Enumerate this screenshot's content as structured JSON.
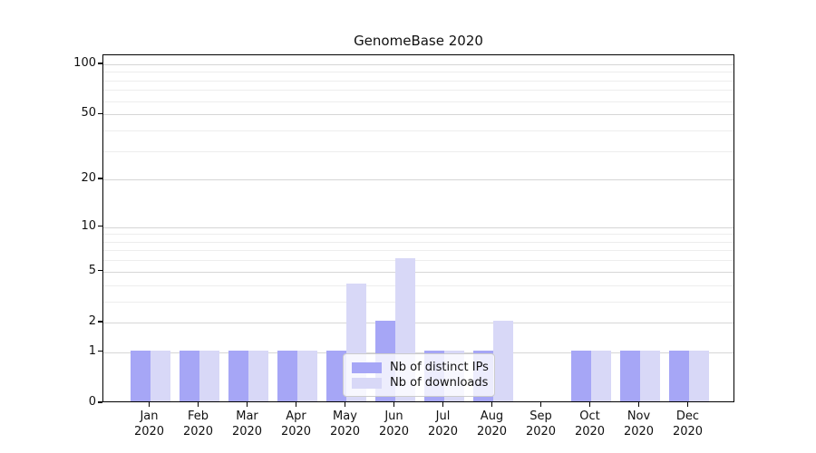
{
  "title": "GenomeBase 2020",
  "chart_data": {
    "type": "bar",
    "title": "GenomeBase 2020",
    "categories": [
      "Jan 2020",
      "Feb 2020",
      "Mar 2020",
      "Apr 2020",
      "May 2020",
      "Jun 2020",
      "Jul 2020",
      "Aug 2020",
      "Sep 2020",
      "Oct 2020",
      "Nov 2020",
      "Dec 2020"
    ],
    "series": [
      {
        "name": "Nb of distinct IPs",
        "color": "#a6a6f6",
        "values": [
          1,
          1,
          1,
          1,
          1,
          2,
          1,
          1,
          0,
          1,
          1,
          1
        ]
      },
      {
        "name": "Nb of downloads",
        "color": "#d8d8f7",
        "values": [
          1,
          1,
          1,
          1,
          4,
          6,
          1,
          2,
          0,
          1,
          1,
          1
        ]
      }
    ],
    "xlabel": "",
    "ylabel": "",
    "yscale": "log1p",
    "ymax": 113,
    "yticks": [
      0,
      1,
      2,
      5,
      10,
      20,
      50,
      100
    ],
    "grid_major": [
      1,
      2,
      5,
      10,
      20,
      50,
      100
    ],
    "grid_minor": [
      3,
      4,
      6,
      7,
      8,
      9,
      30,
      40,
      60,
      70,
      80,
      90
    ],
    "grid": "horizontal",
    "legend_position": "lower-center",
    "axis_color": "#000000",
    "major_grid_color": "#d6d6d6",
    "minor_grid_color": "#ededed"
  }
}
